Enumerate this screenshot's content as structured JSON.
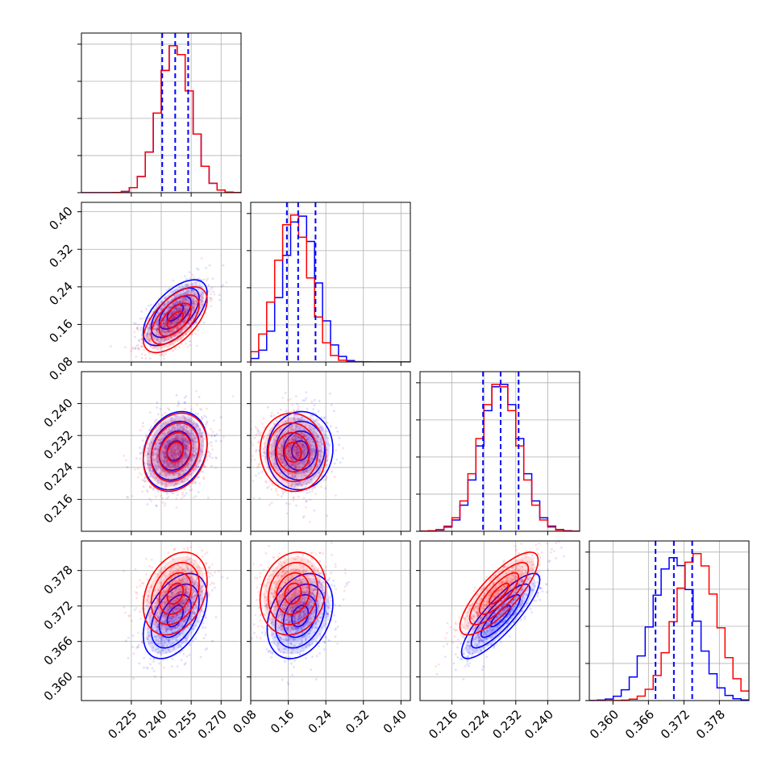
{
  "chart_data": {
    "type": "corner",
    "n_params": 4,
    "colors": {
      "a": "#0000ff",
      "b": "#ff0000"
    },
    "grid": true,
    "ranges": [
      [
        0.2,
        0.28
      ],
      [
        0.08,
        0.42
      ],
      [
        0.208,
        0.248
      ],
      [
        0.356,
        0.383
      ]
    ],
    "tick_labels": [
      [
        "0.225",
        "0.240",
        "0.255",
        "0.270"
      ],
      [
        "0.08",
        "0.16",
        "0.24",
        "0.32",
        "0.40"
      ],
      [
        "0.216",
        "0.224",
        "0.232",
        "0.240"
      ],
      [
        "0.360",
        "0.366",
        "0.372",
        "0.378"
      ]
    ],
    "series": [
      {
        "color": "#0000ff",
        "mean": [
          0.247,
          0.185,
          0.2282,
          0.3703
        ],
        "sd": [
          0.008,
          0.035,
          0.0049,
          0.0036
        ],
        "quantiles": [
          [
            0.2405,
            0.247,
            0.2535
          ],
          [
            0.157,
            0.181,
            0.218
          ],
          [
            0.2238,
            0.2282,
            0.2327
          ],
          [
            0.3672,
            0.3703,
            0.3734
          ]
        ]
      },
      {
        "color": "#ff0000",
        "mean": [
          0.247,
          0.17,
          0.2278,
          0.3741
        ],
        "sd": [
          0.008,
          0.035,
          0.0049,
          0.0035
        ]
      }
    ],
    "correlations": {
      "a": {
        "1_0": 0.6,
        "2_0": 0.2,
        "3_0": 0.45,
        "2_1": 0.05,
        "3_1": 0.3,
        "3_2": 0.85
      },
      "b": {
        "1_0": 0.6,
        "2_0": 0.2,
        "3_0": 0.3,
        "2_1": -0.05,
        "3_1": 0.15,
        "3_2": 0.8
      }
    },
    "contour_sigma_levels": [
      0.5,
      1.0,
      1.5,
      2.0
    ],
    "histogram_bins": 20
  }
}
